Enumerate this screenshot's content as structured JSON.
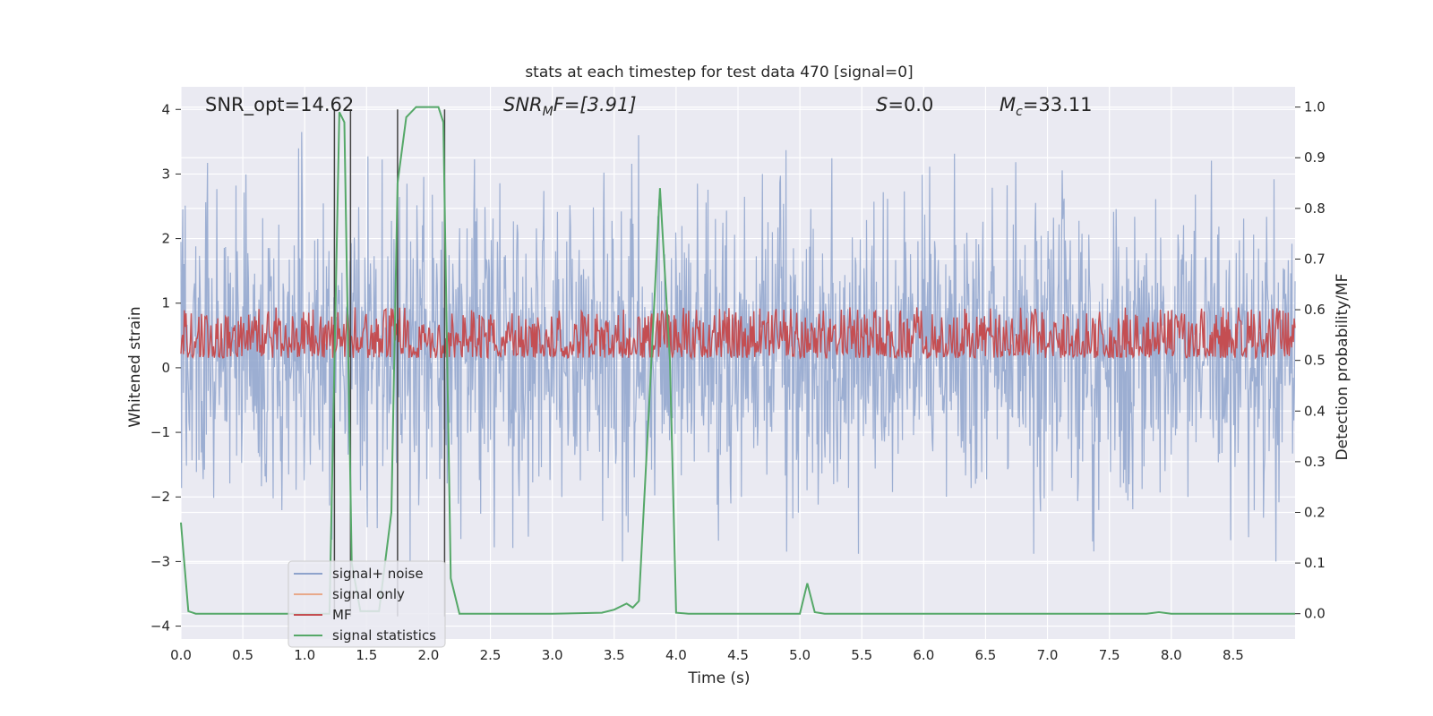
{
  "chart_data": {
    "type": "line",
    "title": "stats at each timestep for test data 470 [signal=0]",
    "xlabel": "Time (s)",
    "ylabel_left": "Whitened strain",
    "ylabel_right": "Detection probability/MF",
    "xlim": [
      0.0,
      9.0
    ],
    "ylim_left": [
      -4.2,
      4.35
    ],
    "ylim_right": [
      -0.05,
      1.04
    ],
    "x_ticks": [
      "0.0",
      "0.5",
      "1.0",
      "1.5",
      "2.0",
      "2.5",
      "3.0",
      "3.5",
      "4.0",
      "4.5",
      "5.0",
      "5.5",
      "6.0",
      "6.5",
      "7.0",
      "7.5",
      "8.0",
      "8.5"
    ],
    "y_left_ticks": [
      "4",
      "3",
      "2",
      "1",
      "0",
      "−1",
      "−2",
      "−3",
      "−4"
    ],
    "y_right_ticks": [
      "1.0",
      "0.9",
      "0.8",
      "0.7",
      "0.6",
      "0.5",
      "0.4",
      "0.3",
      "0.2",
      "0.1",
      "0.0"
    ],
    "annotations": {
      "snr_opt": "SNR_opt=14.62",
      "snr_mf_pre": "SNR",
      "snr_mf_sub": "M",
      "snr_mf_post": "F=[3.91]",
      "s_pre": "S",
      "s_post": "=0.0",
      "mc_pre": "M",
      "mc_sub": "c",
      "mc_post": "=33.11"
    },
    "grid": true,
    "legend_position": "lower-left",
    "series": [
      {
        "name": "signal+ noise",
        "color": "#8ea3cc",
        "description": "noise band approx uniform amplitude",
        "envelope": [
          -3.0,
          3.9
        ]
      },
      {
        "name": "signal only",
        "color": "#e8a98a",
        "values": []
      },
      {
        "name": "MF",
        "color": "#c44e52",
        "envelope_right_axis": [
          0.5,
          0.6
        ]
      },
      {
        "name": "signal statistics",
        "color": "#55a868",
        "x": [
          0.0,
          0.06,
          0.12,
          0.2,
          0.5,
          1.0,
          1.2,
          1.28,
          1.32,
          1.38,
          1.45,
          1.5,
          1.6,
          1.7,
          1.75,
          1.82,
          1.9,
          2.0,
          2.08,
          2.12,
          2.18,
          2.25,
          2.5,
          3.0,
          3.4,
          3.5,
          3.6,
          3.65,
          3.7,
          3.78,
          3.87,
          3.95,
          4.0,
          4.1,
          4.5,
          5.0,
          5.06,
          5.12,
          5.2,
          6.0,
          7.0,
          7.8,
          7.9,
          8.0,
          8.5,
          9.0
        ],
        "values": [
          0.18,
          0.005,
          0.0,
          0.0,
          0.0,
          0.0,
          0.0,
          0.99,
          0.97,
          0.1,
          0.005,
          0.005,
          0.005,
          0.2,
          0.85,
          0.98,
          1.0,
          1.0,
          1.0,
          0.97,
          0.07,
          0.0,
          0.0,
          0.0,
          0.002,
          0.008,
          0.02,
          0.012,
          0.025,
          0.4,
          0.84,
          0.5,
          0.002,
          0.0,
          0.0,
          0.0,
          0.06,
          0.003,
          0.0,
          0.0,
          0.0,
          0.0,
          0.003,
          0.0,
          0.0,
          0.0
        ]
      }
    ],
    "vertical_markers": [
      1.24,
      1.37,
      1.75,
      2.13
    ],
    "colors": {
      "plot_bg": "#eaeaf2",
      "grid": "#ffffff",
      "marker": "#444444"
    }
  }
}
